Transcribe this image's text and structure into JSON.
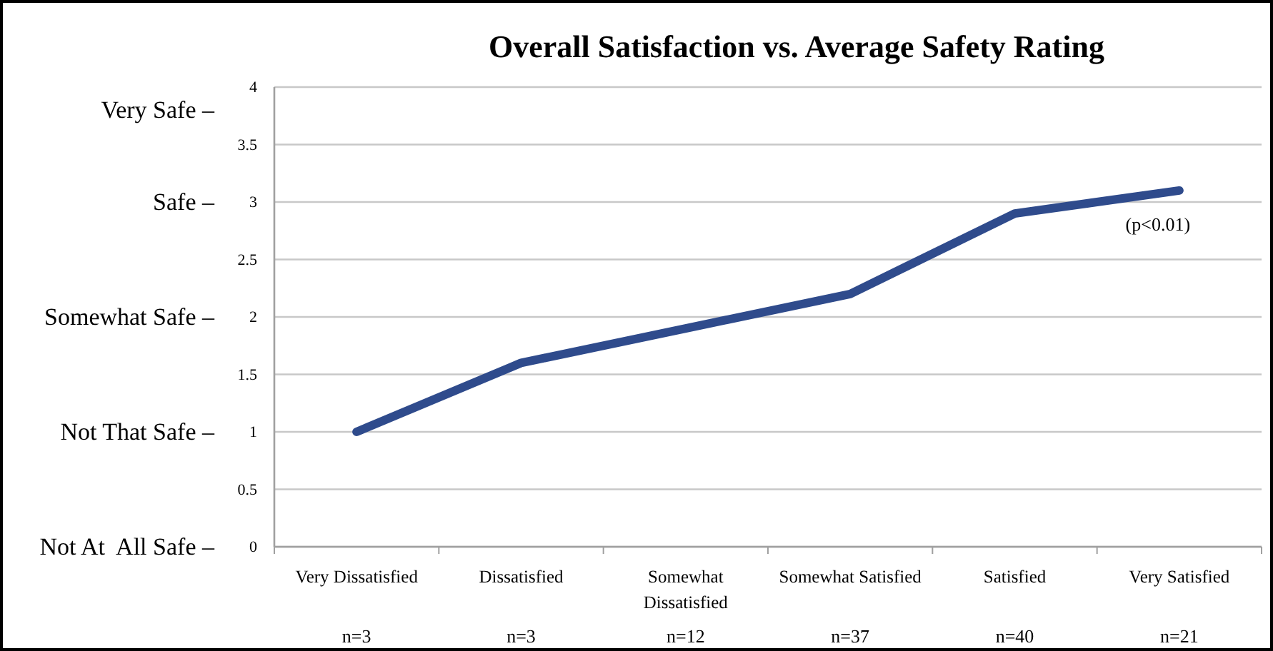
{
  "chart_data": {
    "type": "line",
    "title": "Overall Satisfaction vs. Average Safety Rating",
    "categories": [
      "Very Dissatisfied",
      "Dissatisfied",
      "Somewhat Dissatisfied",
      "Somewhat Satisfied",
      "Satisfied",
      "Very Satisfied"
    ],
    "series": [
      {
        "color": "#2f4b8c",
        "values": [
          1,
          1.6,
          1.9,
          2.2,
          2.9,
          3.1
        ]
      }
    ],
    "ylim": [
      0,
      4
    ],
    "yticks": [
      0,
      0.5,
      1,
      1.5,
      2,
      2.5,
      3,
      3.5,
      4
    ],
    "grid": "y",
    "marker": "none",
    "line_style": "solid",
    "annotations": [
      {
        "text": "(p<0.01)",
        "x": "Very Satisfied",
        "y": 3.1
      },
      "n=3",
      "n=3",
      "n=12",
      "n=37",
      "n=40",
      "n=21",
      "Not At  All Safe –",
      "Not That Safe –",
      "Somewhat Safe –",
      "Safe –",
      "Very Safe –"
    ]
  }
}
